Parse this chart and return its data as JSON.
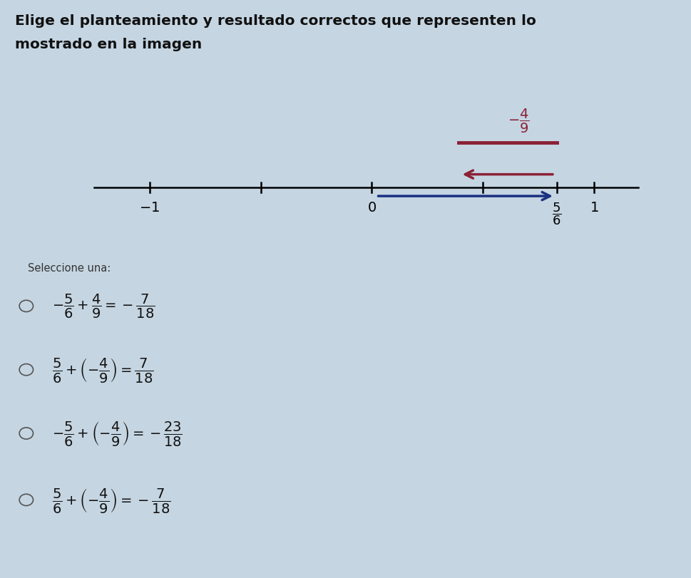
{
  "title_line1": "Elige el planteamiento y resultado correctos que representen lo",
  "title_line2": "mostrado en la imagen",
  "title_fontsize": 14.5,
  "title_fontweight": "bold",
  "bg_color": "#c5d5e2",
  "five_sixths": 0.8333333,
  "seven_eighteenths": 0.38888889,
  "blue_color": "#1a3080",
  "red_color": "#8b2035",
  "seleccione_label": "Seleccione una:",
  "options": [
    {
      "text1": "$-\\dfrac{5}{6}$",
      "text2": "$+$",
      "text3": "$\\dfrac{4}{9}$",
      "text4": "$=$",
      "text5": "$-\\dfrac{7}{18}$",
      "bold": true
    },
    {
      "text1": "$\\dfrac{5}{6}$",
      "text2": "$+$",
      "text3": "$\\left(-\\dfrac{4}{9}\\right)$",
      "text4": "$=$",
      "text5": "$\\dfrac{7}{18}$",
      "bold": false
    },
    {
      "text1": "$-\\dfrac{5}{6}$",
      "text2": "$+$",
      "text3": "$\\left(-\\dfrac{4}{9}\\right)$",
      "text4": "$=$",
      "text5": "$-\\dfrac{23}{18}$",
      "bold": false
    },
    {
      "text1": "$\\dfrac{5}{6}$",
      "text2": "$+$",
      "text3": "$\\left(-\\dfrac{4}{9}\\right)$",
      "text4": "$=$",
      "text5": "$-\\dfrac{7}{18}$",
      "bold": true
    }
  ]
}
